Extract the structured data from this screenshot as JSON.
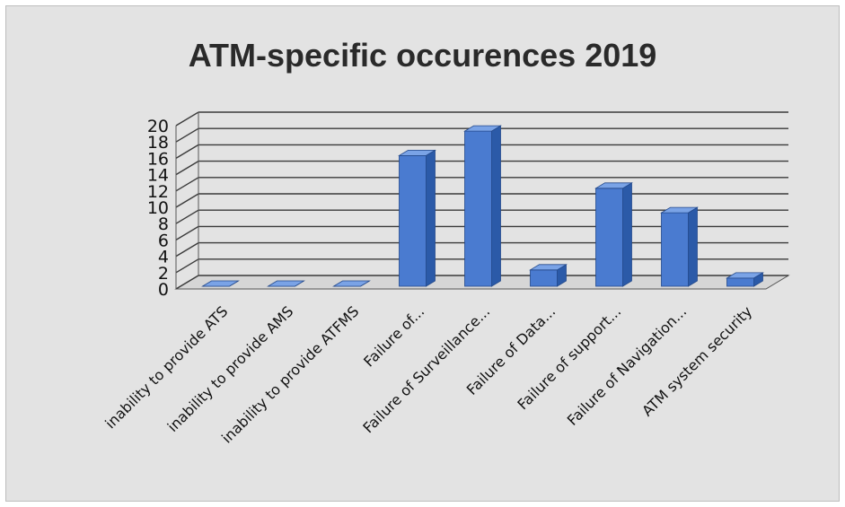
{
  "chart_data": {
    "type": "bar",
    "title": "ATM-specific occurences 2019",
    "categories": [
      "inability to provide ATS",
      "inability to provide AMS",
      "inability to provide ATFMS",
      "Failure of...",
      "Failure of Surveillance...",
      "Failure of Data...",
      "Failure of support...",
      "Failure of Navigation...",
      "ATM system security"
    ],
    "values": [
      0,
      0,
      0,
      16,
      19,
      2,
      12,
      9,
      1
    ],
    "ylim": [
      0,
      20
    ],
    "yticks": [
      "0",
      "2",
      "4",
      "6",
      "8",
      "10",
      "12",
      "14",
      "16",
      "18",
      "20"
    ],
    "xlabel": "",
    "ylabel": "",
    "grid": true,
    "three_d": true,
    "legend": "none",
    "colors": {
      "bar_front": "#4a7bd0",
      "bar_side": "#2b5aa8",
      "bar_top": "#7aa3e6",
      "background": "#e3e3e3",
      "gridline": "#3a3a3a"
    }
  }
}
